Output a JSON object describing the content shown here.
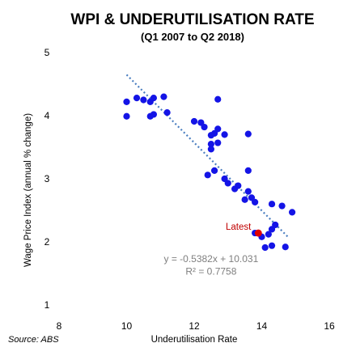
{
  "chart_data": {
    "type": "scatter",
    "title": "WPI & UNDERUTILISATION RATE",
    "subtitle": "(Q1 2007 to Q2 2018)",
    "xlabel": "Underutilisation Rate",
    "ylabel": "Wage Price Index (annual % change)",
    "xlim": [
      8,
      16
    ],
    "ylim": [
      1,
      5
    ],
    "x_ticks": [
      "8",
      "10",
      "12",
      "14",
      "16"
    ],
    "y_ticks": [
      "1",
      "2",
      "3",
      "4",
      "5"
    ],
    "grid": false,
    "source": "Source: ABS",
    "series": [
      {
        "color": "#1414e6",
        "points": [
          [
            10.0,
            4.22
          ],
          [
            10.3,
            4.28
          ],
          [
            10.5,
            4.25
          ],
          [
            10.7,
            4.22
          ],
          [
            10.8,
            4.28
          ],
          [
            11.1,
            4.3
          ],
          [
            12.7,
            4.26
          ],
          [
            10.0,
            3.99
          ],
          [
            10.7,
            3.99
          ],
          [
            10.8,
            4.02
          ],
          [
            11.2,
            4.05
          ],
          [
            12.0,
            3.91
          ],
          [
            12.2,
            3.89
          ],
          [
            12.3,
            3.82
          ],
          [
            12.7,
            3.79
          ],
          [
            12.6,
            3.72
          ],
          [
            12.5,
            3.69
          ],
          [
            12.9,
            3.7
          ],
          [
            13.6,
            3.71
          ],
          [
            12.7,
            3.57
          ],
          [
            12.5,
            3.55
          ],
          [
            12.5,
            3.47
          ],
          [
            12.6,
            3.13
          ],
          [
            12.4,
            3.06
          ],
          [
            12.9,
            3.0
          ],
          [
            13.0,
            2.93
          ],
          [
            13.6,
            3.13
          ],
          [
            13.3,
            2.89
          ],
          [
            13.2,
            2.84
          ],
          [
            13.6,
            2.8
          ],
          [
            13.7,
            2.7
          ],
          [
            13.5,
            2.67
          ],
          [
            13.8,
            2.63
          ],
          [
            14.3,
            2.6
          ],
          [
            14.6,
            2.57
          ],
          [
            14.9,
            2.47
          ],
          [
            14.4,
            2.27
          ],
          [
            14.3,
            2.2
          ],
          [
            13.8,
            2.14
          ],
          [
            14.0,
            2.08
          ],
          [
            14.2,
            2.12
          ],
          [
            14.3,
            1.94
          ],
          [
            14.1,
            1.91
          ],
          [
            14.7,
            1.92
          ]
        ]
      },
      {
        "name": "Latest",
        "color": "#e00000",
        "points": [
          [
            13.9,
            2.14
          ]
        ]
      }
    ],
    "trendline": {
      "equation": "y = -0.5382x + 10.031",
      "r_squared": "R² = 0.7758",
      "slope": -0.5382,
      "intercept": 10.031,
      "x_range": [
        10.0,
        14.8
      ],
      "color": "#4a7ec0"
    }
  }
}
